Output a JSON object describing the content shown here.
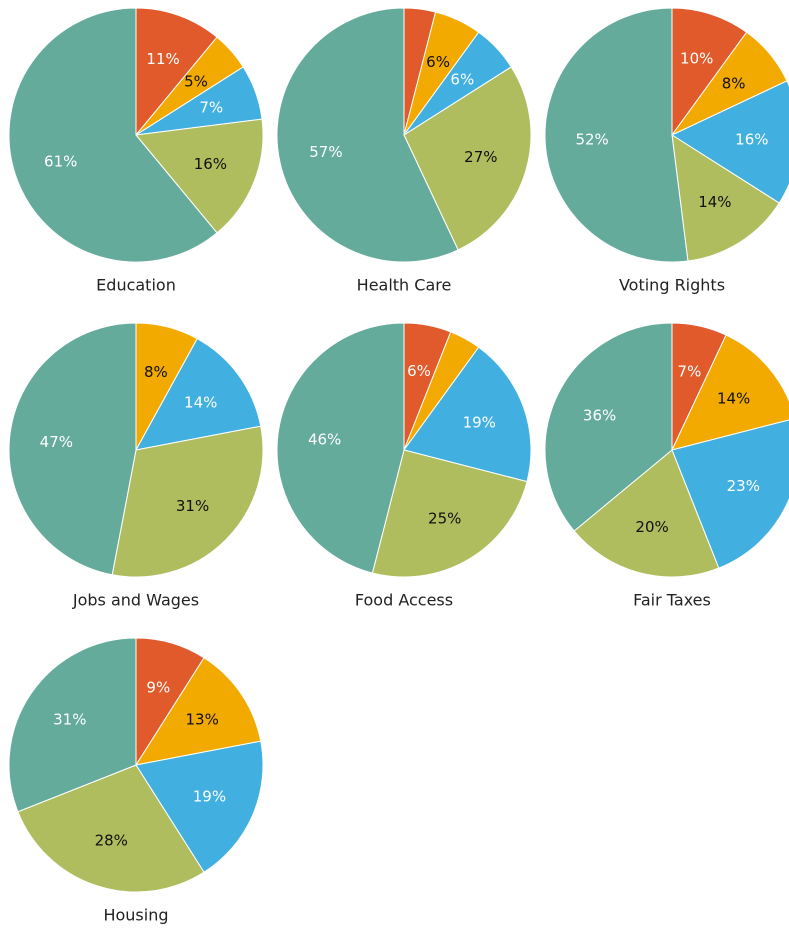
{
  "chart_data": [
    {
      "type": "pie",
      "title": "Education",
      "values": [
        11,
        5,
        7,
        16,
        61
      ],
      "value_labels": [
        "11%",
        "5%",
        "7%",
        "16%",
        "61%"
      ],
      "colors": [
        "#e05a2b",
        "#f2a900",
        "#41b0e0",
        "#b0bd5e",
        "#64ab9c"
      ]
    },
    {
      "type": "pie",
      "title": "Health Care",
      "values": [
        4,
        6,
        6,
        27,
        57
      ],
      "value_labels": [
        null,
        "6%",
        "6%",
        "27%",
        "57%"
      ],
      "colors": [
        "#e05a2b",
        "#f2a900",
        "#41b0e0",
        "#b0bd5e",
        "#64ab9c"
      ]
    },
    {
      "type": "pie",
      "title": "Voting Rights",
      "values": [
        10,
        8,
        16,
        14,
        52
      ],
      "value_labels": [
        "10%",
        "8%",
        "16%",
        "14%",
        "52%"
      ],
      "colors": [
        "#e05a2b",
        "#f2a900",
        "#41b0e0",
        "#b0bd5e",
        "#64ab9c"
      ]
    },
    {
      "type": "pie",
      "title": "Jobs and Wages",
      "values": [
        8,
        14,
        31,
        47
      ],
      "value_labels": [
        "8%",
        "14%",
        "31%",
        "47%"
      ],
      "colors": [
        "#f2a900",
        "#41b0e0",
        "#b0bd5e",
        "#64ab9c"
      ]
    },
    {
      "type": "pie",
      "title": "Food Access",
      "values": [
        6,
        4,
        19,
        25,
        46
      ],
      "value_labels": [
        "6%",
        null,
        "19%",
        "25%",
        "46%"
      ],
      "colors": [
        "#e05a2b",
        "#f2a900",
        "#41b0e0",
        "#b0bd5e",
        "#64ab9c"
      ]
    },
    {
      "type": "pie",
      "title": "Fair Taxes",
      "values": [
        7,
        14,
        23,
        20,
        36
      ],
      "value_labels": [
        "7%",
        "14%",
        "23%",
        "20%",
        "36%"
      ],
      "colors": [
        "#e05a2b",
        "#f2a900",
        "#41b0e0",
        "#b0bd5e",
        "#64ab9c"
      ]
    },
    {
      "type": "pie",
      "title": "Housing",
      "values": [
        9,
        13,
        19,
        28,
        31
      ],
      "value_labels": [
        "9%",
        "13%",
        "19%",
        "28%",
        "31%"
      ],
      "colors": [
        "#e05a2b",
        "#f2a900",
        "#41b0e0",
        "#b0bd5e",
        "#64ab9c"
      ]
    }
  ]
}
